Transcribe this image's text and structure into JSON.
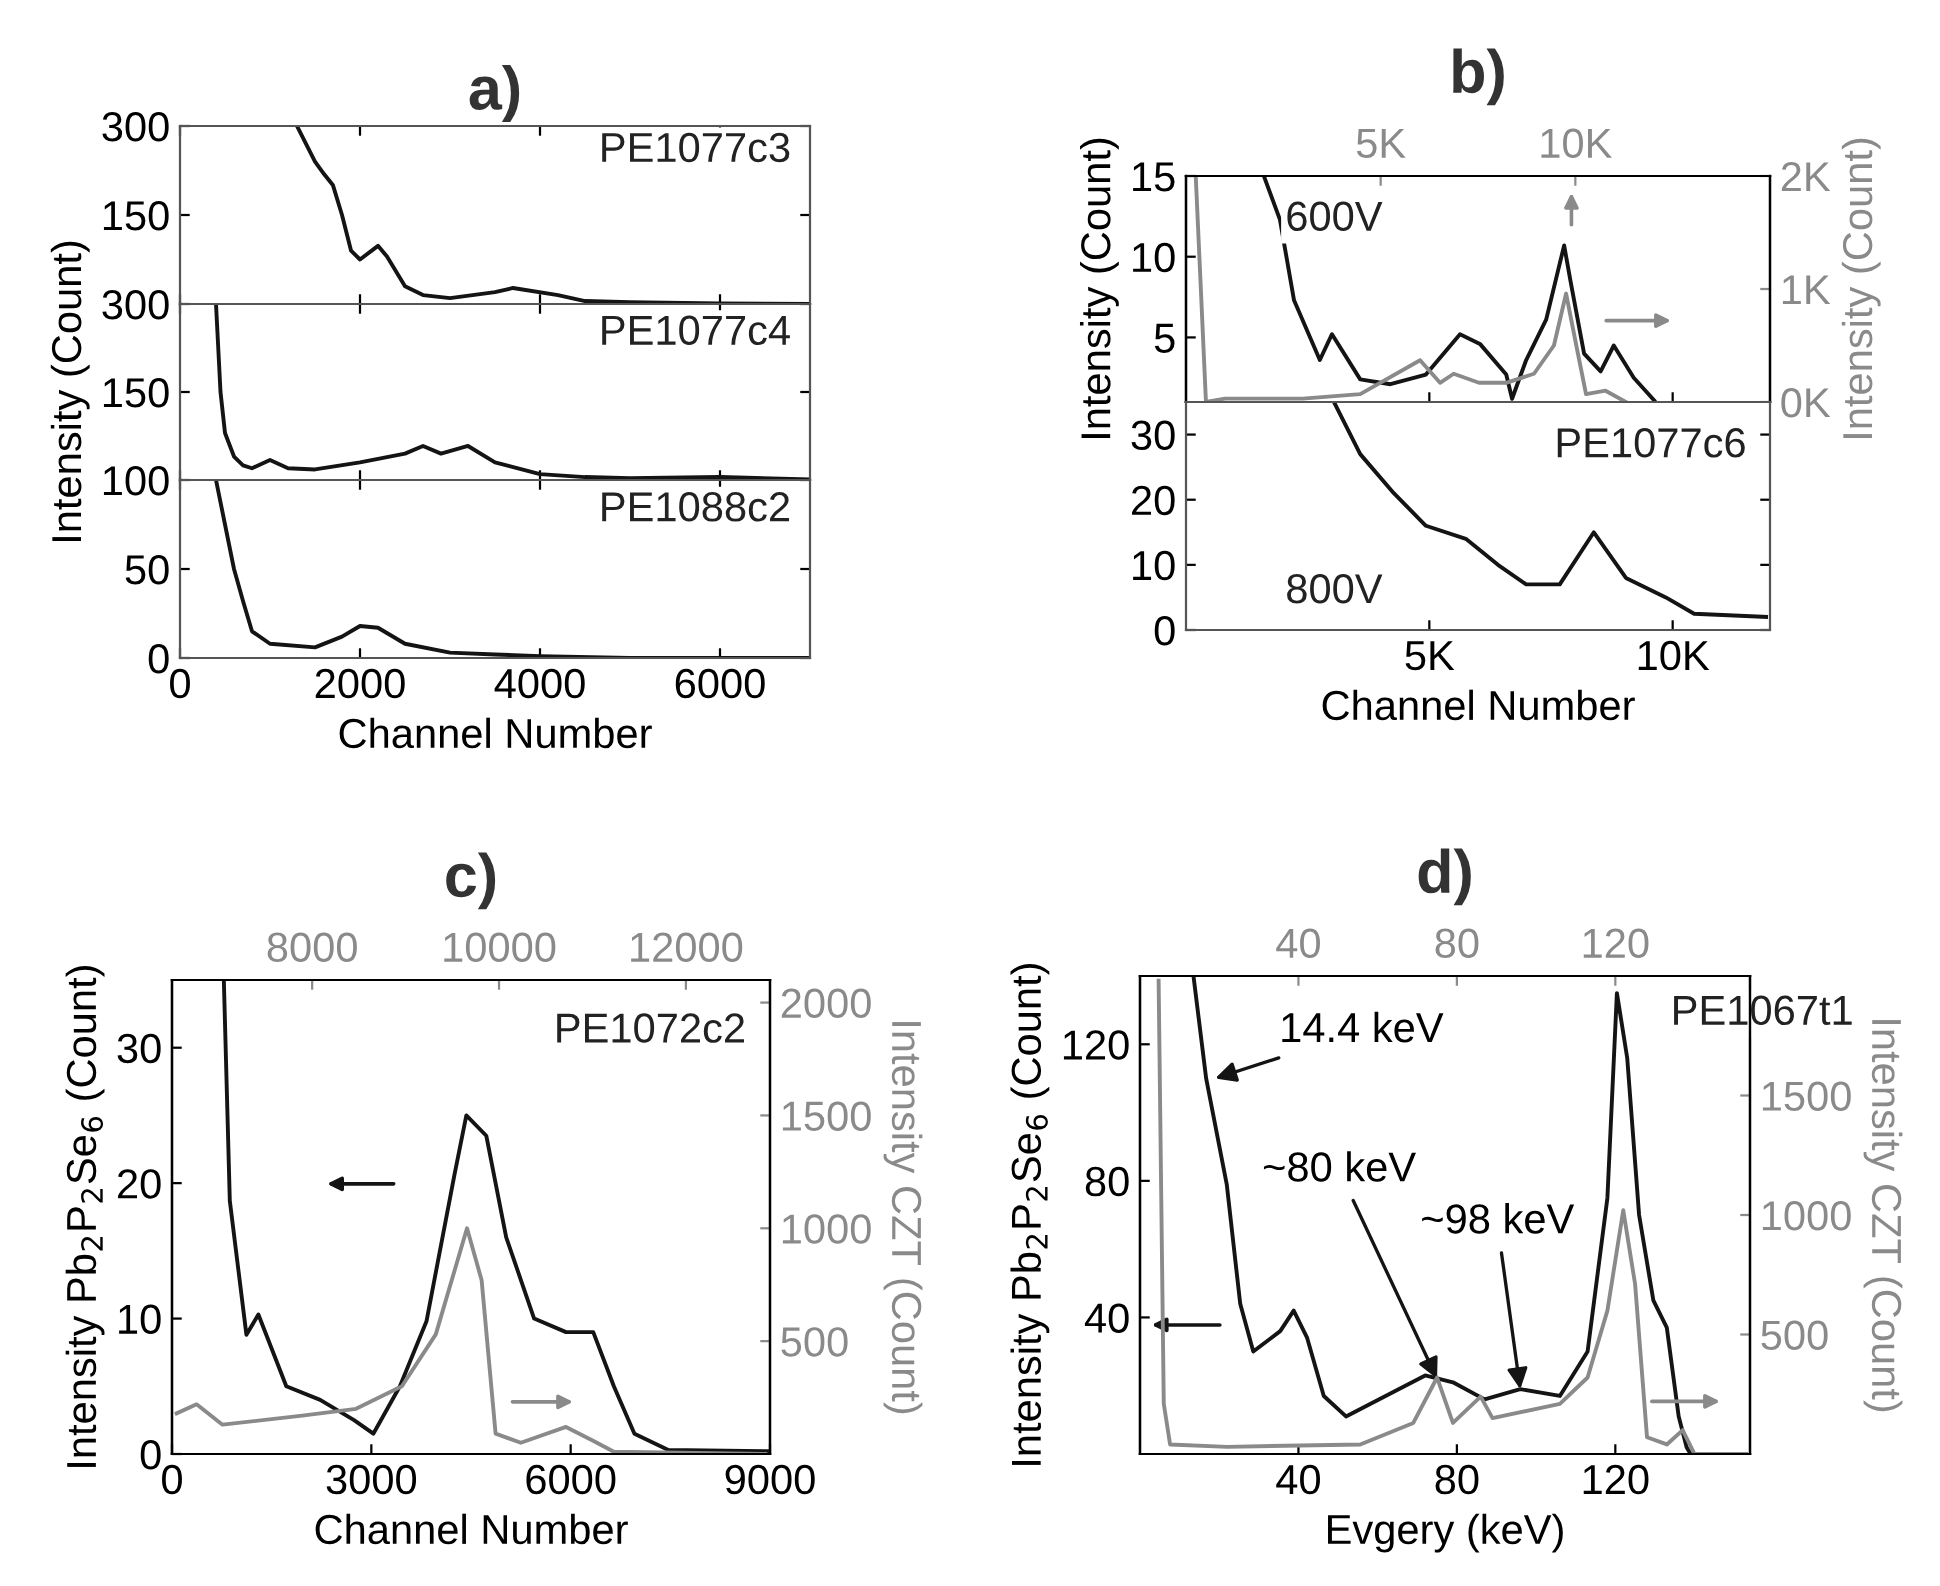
{
  "chart_data": [
    {
      "type": "line",
      "title": "a)",
      "xlim": [
        0,
        7000
      ],
      "xticks": [
        0,
        2000,
        4000,
        6000
      ],
      "ylim": [
        0,
        300
      ],
      "yticks": [
        150,
        300
      ],
      "tick_labels": "y",
      "annotations": [
        "PE1077c3"
      ],
      "series": [
        {
          "color": "#141414",
          "x": [
            1300,
            1500,
            1600,
            1700,
            1800,
            1900,
            2000,
            2200,
            2300,
            2500,
            2700,
            3000,
            3500,
            3700,
            4200,
            4500,
            5000,
            6000,
            7000
          ],
          "values": [
            300,
            240,
            219,
            200,
            150,
            90,
            75,
            98,
            80,
            30,
            15,
            10,
            20,
            27,
            15,
            5,
            3,
            1,
            0
          ]
        }
      ]
    },
    {
      "type": "line",
      "ylabel": "Intensity (Count)",
      "xlim": [
        0,
        7000
      ],
      "xticks": [
        0,
        2000,
        4000,
        6000
      ],
      "ylim": [
        0,
        300
      ],
      "yticks": [
        150,
        300
      ],
      "tick_labels": "y",
      "annotations": [
        "PE1077c4"
      ],
      "series": [
        {
          "color": "#141414",
          "x": [
            400,
            450,
            500,
            600,
            700,
            800,
            1000,
            1200,
            1500,
            2000,
            2500,
            2700,
            2900,
            3200,
            3500,
            4000,
            4500,
            5000,
            6000,
            7000
          ],
          "values": [
            300,
            150,
            80,
            40,
            25,
            20,
            34,
            20,
            18,
            30,
            45,
            58,
            45,
            58,
            30,
            10,
            5,
            3,
            5,
            1
          ]
        }
      ]
    },
    {
      "type": "line",
      "xlabel": "Channel Number",
      "xlim": [
        0,
        7000
      ],
      "xticks": [
        0,
        2000,
        4000,
        6000
      ],
      "ylim": [
        0,
        100
      ],
      "yticks": [
        0,
        50,
        100
      ],
      "annotations": [
        "PE1088c2"
      ],
      "series": [
        {
          "color": "#141414",
          "x": [
            400,
            500,
            600,
            700,
            800,
            1000,
            1500,
            1800,
            2000,
            2200,
            2500,
            3000,
            3500,
            4000,
            5000,
            7000
          ],
          "values": [
            100,
            75,
            50,
            32,
            15,
            8,
            6,
            12,
            18,
            17,
            8,
            3,
            2,
            1,
            0,
            0
          ]
        }
      ]
    },
    {
      "type": "line",
      "title": "b)",
      "ylabel": "Intensity (Count)",
      "y2label": "Intensity (Count)",
      "xlim": [
        0,
        12000
      ],
      "xticks": [
        5000,
        10000
      ],
      "ylim": [
        1,
        15
      ],
      "yticks": [
        5,
        10,
        15
      ],
      "x2lim": [
        0,
        15000
      ],
      "x2ticks": [
        {
          "value": 5000,
          "label": "5K"
        },
        {
          "value": 10000,
          "label": "10K"
        }
      ],
      "y2lim": [
        0,
        2000
      ],
      "y2ticks": [
        {
          "value": 0,
          "label": "0K"
        },
        {
          "value": 1000,
          "label": "1K"
        },
        {
          "value": 2000,
          "label": "2K"
        }
      ],
      "tick_labels": "y",
      "annotations": [
        "600V"
      ],
      "series": [
        {
          "color": "#141414",
          "x": [
            1600,
            1930,
            2220,
            2750,
            3000,
            3580,
            4200,
            4930,
            5630,
            6040,
            6580,
            6700,
            6990,
            7400,
            7770,
            7900,
            8180,
            8520,
            8790,
            9200,
            9620
          ],
          "values": [
            15,
            12.3,
            7.3,
            3.6,
            5.2,
            2.4,
            2.1,
            2.7,
            5.2,
            4.6,
            2.7,
            1.2,
            3.6,
            6.1,
            10.7,
            8.5,
            4.0,
            2.9,
            4.5,
            2.5,
            1.1
          ]
        },
        {
          "color": "#8a8a8a",
          "axis": "y2",
          "x": [
            200,
            410,
            800,
            2400,
            3580,
            4810,
            5220,
            5500,
            6020,
            6580,
            7150,
            7560,
            7810,
            8020,
            8220,
            8620,
            9040
          ],
          "values": [
            2000,
            0,
            30,
            30,
            70,
            370,
            170,
            250,
            170,
            170,
            250,
            500,
            960,
            500,
            70,
            100,
            0
          ]
        }
      ]
    },
    {
      "type": "line",
      "xlim": [
        0,
        12000
      ],
      "xticks": [
        {
          "value": 5000,
          "label": "5K"
        },
        {
          "value": 10000,
          "label": "10K"
        }
      ],
      "xlabel": "Channel Number",
      "ylim": [
        0,
        35
      ],
      "yticks": [
        0,
        10,
        20,
        30
      ],
      "annotations": [
        "PE1077c6",
        "800V"
      ],
      "series": [
        {
          "color": "#141414",
          "x": [
            3040,
            3580,
            4270,
            4930,
            5750,
            6410,
            6990,
            7680,
            8380,
            9040,
            9860,
            10440,
            11920
          ],
          "values": [
            35,
            27,
            21,
            16,
            14,
            10,
            7,
            7,
            15,
            8,
            5,
            2.5,
            2
          ]
        }
      ]
    },
    {
      "type": "line",
      "title": "c)",
      "xlabel": "Channel Number",
      "ylabel": "Intensity Pb$_{2}$P$_{2}$Se$_{6}$ (Count)",
      "y2label": "Intensity CZT (Count)",
      "xlim": [
        0,
        9000
      ],
      "xticks": [
        0,
        3000,
        6000,
        9000
      ],
      "ylim": [
        0,
        35
      ],
      "yticks": [
        0,
        10,
        20,
        30
      ],
      "x2lim": [
        6500,
        12900
      ],
      "x2ticks": [
        8000,
        10000,
        12000
      ],
      "y2lim": [
        0,
        2100
      ],
      "y2ticks": [
        500,
        1000,
        1500,
        2000
      ],
      "annotations": [
        "PE1072c2"
      ],
      "series": [
        {
          "color": "#141414",
          "x": [
            780,
            870,
            1120,
            1300,
            1720,
            2230,
            2740,
            3030,
            3430,
            3830,
            4250,
            4430,
            4730,
            5030,
            5450,
            5930,
            6340,
            6650,
            6960,
            7470,
            9000
          ],
          "values": [
            35,
            18.7,
            8.8,
            10.3,
            5,
            4,
            2.5,
            1.5,
            5,
            9.8,
            20.6,
            25,
            23.5,
            16,
            10,
            9,
            9,
            5,
            1.5,
            0.3,
            0.2
          ]
        },
        {
          "color": "#8a8a8a",
          "axis": "y2",
          "x": [
            70,
            370,
            760,
            1960,
            2770,
            3460,
            3970,
            4440,
            4660,
            4870,
            5250,
            5930,
            6330,
            6650,
            8930
          ],
          "values": [
            180,
            220,
            130,
            170,
            200,
            300,
            530,
            1000,
            770,
            90,
            50,
            120,
            60,
            10,
            0
          ]
        }
      ]
    },
    {
      "type": "line",
      "title": "d)",
      "xlabel": "Evgery (keV)",
      "ylabel": "Intensity Pb$_{2}$P$_{2}$Se$_{6}$ (Count)",
      "y2label": "Intensity CZT (Count)",
      "xlim": [
        0,
        154
      ],
      "xticks": [
        40,
        80,
        120
      ],
      "ylim": [
        0,
        140
      ],
      "yticks": [
        40,
        80,
        120
      ],
      "x2lim": [
        0,
        154
      ],
      "x2ticks": [
        40,
        80,
        120
      ],
      "y2lim": [
        0,
        2000
      ],
      "y2ticks": [
        500,
        1000,
        1500
      ],
      "annotations": [
        "PE1067t1",
        {
          "text": "14.4 keV",
          "x": 19,
          "y": 110
        },
        {
          "text": "~80 keV",
          "x": 75,
          "y": 22
        },
        {
          "text": "~98 keV",
          "x": 96,
          "y": 19
        }
      ],
      "series": [
        {
          "color": "#141414",
          "x": [
            13.5,
            16.7,
            21.9,
            25.3,
            28.6,
            35.4,
            38.8,
            42.2,
            46.4,
            52,
            62,
            72,
            79,
            87,
            96,
            106,
            113,
            118,
            120.4,
            123,
            126,
            129.6,
            133,
            136,
            138,
            139
          ],
          "values": [
            140,
            110,
            79,
            44,
            30,
            36,
            42,
            34,
            17,
            11,
            17,
            23,
            21,
            16,
            19,
            17,
            30,
            75,
            135,
            116,
            70,
            45,
            37,
            11,
            2,
            0
          ]
        },
        {
          "color": "#8a8a8a",
          "axis": "y2",
          "x": [
            4.7,
            6,
            7.6,
            22,
            55.6,
            69,
            75,
            79,
            86,
            89,
            106,
            113,
            118,
            122,
            125,
            128,
            133,
            137,
            140,
            153
          ],
          "values": [
            1980,
            210,
            40,
            30,
            40,
            130,
            320,
            130,
            240,
            150,
            210,
            320,
            600,
            1020,
            710,
            70,
            40,
            100,
            0,
            0
          ]
        }
      ]
    }
  ]
}
